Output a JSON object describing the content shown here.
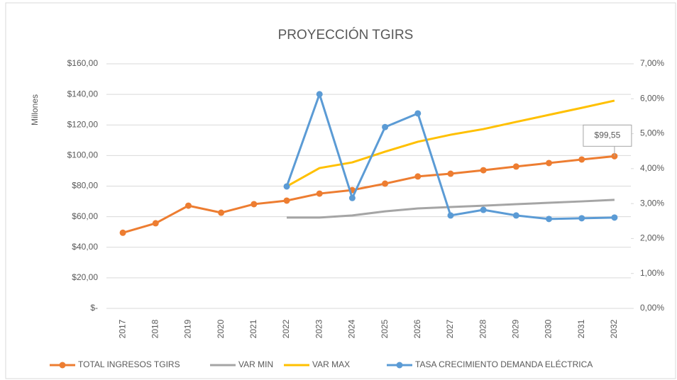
{
  "chart_data": {
    "type": "line",
    "title": "PROYECCIÓN TGIRS",
    "ylabel": "Millones",
    "categories": [
      "2017",
      "2018",
      "2019",
      "2020",
      "2021",
      "2022",
      "2023",
      "2024",
      "2025",
      "2026",
      "2027",
      "2028",
      "2029",
      "2030",
      "2031",
      "2032"
    ],
    "series": [
      {
        "name": "TOTAL INGRESOS TGIRS",
        "color": "#ED7D31",
        "marker": true,
        "values": [
          49.5,
          55.7,
          67.2,
          62.6,
          68.2,
          70.5,
          75.1,
          77.4,
          81.6,
          86.3,
          88.1,
          90.4,
          92.8,
          95.1,
          97.4,
          99.55
        ],
        "value_labels": [
          null,
          null,
          null,
          null,
          null,
          null,
          null,
          null,
          null,
          null,
          null,
          null,
          null,
          null,
          null,
          "$99,55"
        ]
      },
      {
        "name": "VAR MIN",
        "color": "#A5A5A5",
        "marker": false,
        "values": [
          null,
          null,
          null,
          null,
          null,
          59.4,
          59.4,
          60.8,
          63.5,
          65.4,
          66.3,
          67.2,
          68.2,
          69.1,
          70.0,
          71.0
        ]
      },
      {
        "name": "VAR MAX",
        "color": "#FFC000",
        "marker": false,
        "values": [
          null,
          null,
          null,
          null,
          null,
          79.8,
          91.8,
          95.5,
          102.5,
          109.0,
          113.6,
          117.3,
          122.0,
          126.6,
          131.2,
          135.9
        ]
      },
      {
        "name": "TASA CRECIMIENTO DEMANDA ELÉCTRICA",
        "color": "#5B9BD5",
        "marker": true,
        "axis": "y2",
        "values": [
          null,
          null,
          null,
          null,
          null,
          3.49,
          6.13,
          3.16,
          5.19,
          5.58,
          2.66,
          2.82,
          2.66,
          2.56,
          2.58,
          2.6
        ]
      }
    ],
    "ylim": [
      0,
      160
    ],
    "yticks": [
      {
        "value": 0,
        "label": "$-"
      },
      {
        "value": 20,
        "label": "$20,00"
      },
      {
        "value": 40,
        "label": "$40,00"
      },
      {
        "value": 60,
        "label": "$60,00"
      },
      {
        "value": 80,
        "label": "$80,00"
      },
      {
        "value": 100,
        "label": "$100,00"
      },
      {
        "value": 120,
        "label": "$120,00"
      },
      {
        "value": 140,
        "label": "$140,00"
      },
      {
        "value": 160,
        "label": "$160,00"
      }
    ],
    "y2lim": [
      0,
      7
    ],
    "y2ticks": [
      {
        "value": 0,
        "label": "0,00%"
      },
      {
        "value": 1,
        "label": "1,00%"
      },
      {
        "value": 2,
        "label": "2,00%"
      },
      {
        "value": 3,
        "label": "3,00%"
      },
      {
        "value": 4,
        "label": "4,00%"
      },
      {
        "value": 5,
        "label": "5,00%"
      },
      {
        "value": 6,
        "label": "6,00%"
      },
      {
        "value": 7,
        "label": "7,00%"
      }
    ],
    "grid": true,
    "legend": "bottom"
  }
}
